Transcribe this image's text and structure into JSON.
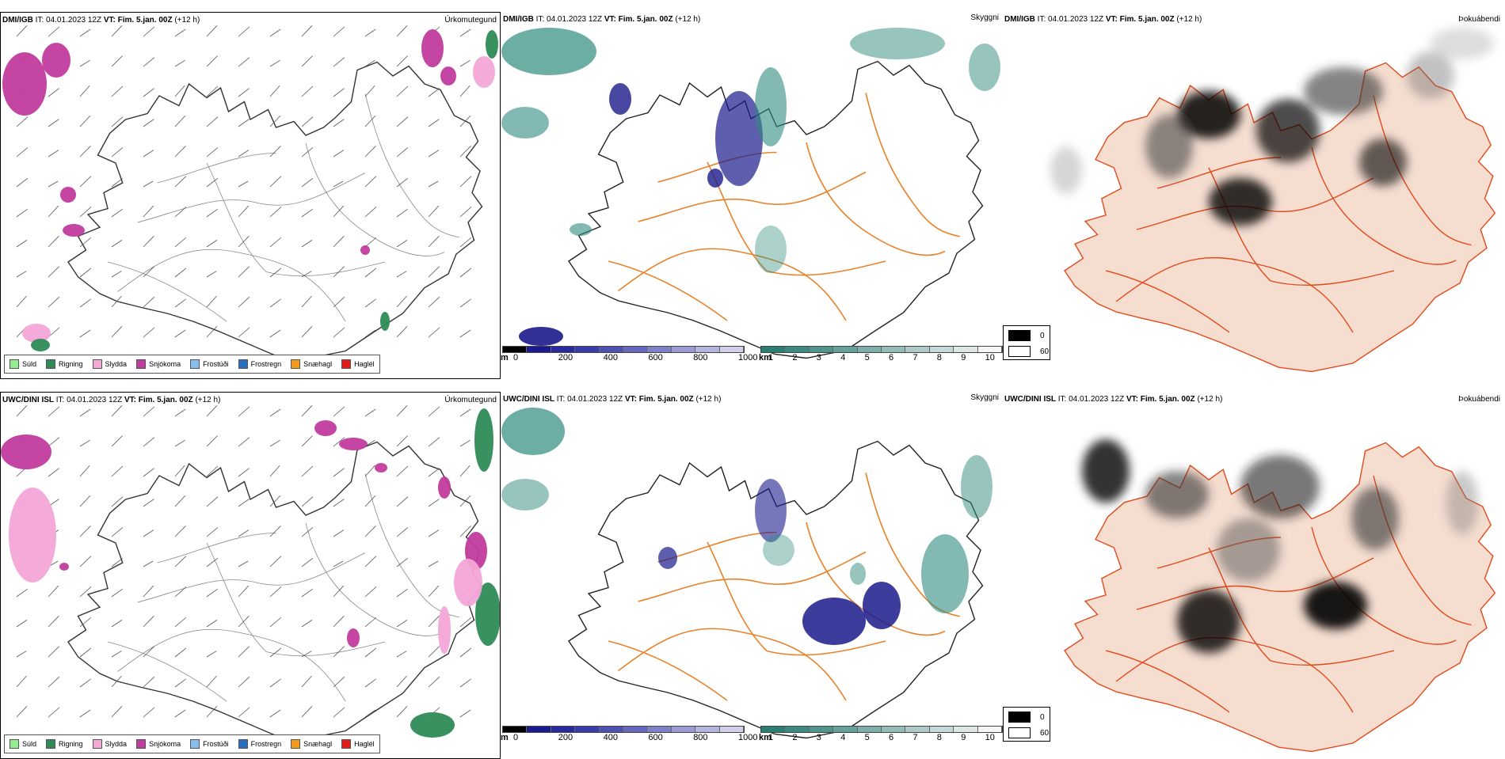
{
  "panels": [
    {
      "model": "DMI/IGB",
      "it_label": "IT:",
      "it_value": "04.01.2023 12Z",
      "vt_label": "VT:",
      "vt_value": "Fim. 5.jan. 00Z",
      "lead": "(+12 h)",
      "title": "Úrkomutegund"
    },
    {
      "model": "DMI/IGB",
      "it_label": "IT:",
      "it_value": "04.01.2023 12Z",
      "vt_label": "VT:",
      "vt_value": "Fim. 5.jan. 00Z",
      "lead": "(+12 h)",
      "title": "Skyggni"
    },
    {
      "model": "DMI/IGB",
      "it_label": "IT:",
      "it_value": "04.01.2023 12Z",
      "vt_label": "VT:",
      "vt_value": "Fim. 5.jan. 00Z",
      "lead": "(+12 h)",
      "title": "Þokuábendi"
    },
    {
      "model": "UWC/DINI ISL",
      "it_label": "IT:",
      "it_value": "04.01.2023 12Z",
      "vt_label": "VT:",
      "vt_value": "Fim. 5.jan. 00Z",
      "lead": "(+12 h)",
      "title": "Úrkomutegund"
    },
    {
      "model": "UWC/DINI ISL",
      "it_label": "IT:",
      "it_value": "04.01.2023 12Z",
      "vt_label": "VT:",
      "vt_value": "Fim. 5.jan. 00Z",
      "lead": "(+12 h)",
      "title": "Skyggni"
    },
    {
      "model": "UWC/DINI ISL",
      "it_label": "IT:",
      "it_value": "04.01.2023 12Z",
      "vt_label": "VT:",
      "vt_value": "Fim. 5.jan. 00Z",
      "lead": "(+12 h)",
      "title": "Þokuábendi"
    }
  ],
  "precip_legend": [
    {
      "label": "Súld",
      "color": "#90ee90"
    },
    {
      "label": "Rigning",
      "color": "#2e8b57"
    },
    {
      "label": "Slydda",
      "color": "#f4a6d7"
    },
    {
      "label": "Snjókoma",
      "color": "#c23b9e"
    },
    {
      "label": "Frostúði",
      "color": "#87bdf0"
    },
    {
      "label": "Frostregn",
      "color": "#2a6fbd"
    },
    {
      "label": "Snæhagl",
      "color": "#f39a1f"
    },
    {
      "label": "Haglél",
      "color": "#e31b1b"
    }
  ],
  "elev_bar": {
    "unit": "m",
    "ticks": [
      "0",
      "200",
      "400",
      "600",
      "800",
      "1000"
    ],
    "colors": [
      "#000000",
      "#1a1a8c",
      "#2a2a9e",
      "#3a3aab",
      "#5050b4",
      "#6666bf",
      "#8080c9",
      "#9a9ad4",
      "#b4b4df",
      "#d0d0ea"
    ]
  },
  "vis_bar": {
    "unit": "km",
    "ticks": [
      "1",
      "2",
      "3",
      "4",
      "5",
      "6",
      "7",
      "8",
      "9",
      "10"
    ],
    "colors": [
      "#2a7f73",
      "#3a8a80",
      "#4f958c",
      "#66a199",
      "#7daea7",
      "#95bcb6",
      "#adcac6",
      "#c5d9d6",
      "#dde8e6",
      "#f2f7f6"
    ]
  },
  "fog_legend": [
    {
      "label": "0",
      "color": "#000000"
    },
    {
      "label": "60",
      "color": "#ffffff"
    }
  ],
  "colors": {
    "coast": "#333333",
    "road": "#e8822a",
    "land_fog": "#f5ddd0",
    "snow": "#c23b9e",
    "rain": "#2e8b57",
    "sleet": "#f4a6d7",
    "vis": "#2f8b7e",
    "elev": "#1a1a8c"
  }
}
